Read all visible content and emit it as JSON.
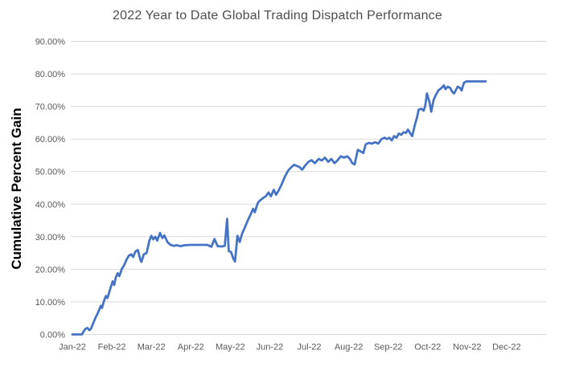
{
  "chart": {
    "title": "2022 Year to Date Global Trading Dispatch Performance",
    "y_axis_title": "Cumulative Percent Gain",
    "colors": {
      "line": "#4472C4",
      "gridline": "#D9D9D9",
      "tick_label": "#595959",
      "title": "#4d4d4d",
      "y_axis_title": "#000000",
      "background": "#ffffff"
    }
  },
  "chart_data": {
    "type": "line",
    "title": "2022 Year to Date Global Trading Dispatch Performance",
    "xlabel": "",
    "ylabel": "Cumulative Percent Gain",
    "ylim": [
      0,
      90
    ],
    "xlim_months": [
      0,
      12
    ],
    "grid": "horizontal",
    "legend": "none",
    "y_tick_step_percent": 10,
    "y_tick_labels": [
      "0.00%",
      "10.00%",
      "20.00%",
      "30.00%",
      "40.00%",
      "50.00%",
      "60.00%",
      "70.00%",
      "80.00%",
      "90.00%"
    ],
    "x_tick_labels": [
      "Jan-22",
      "Feb-22",
      "Mar-22",
      "Apr-22",
      "May-22",
      "Jun-22",
      "Jul-22",
      "Aug-22",
      "Sep-22",
      "Oct-22",
      "Nov-22",
      "Dec-22"
    ],
    "series": [
      {
        "name": "Cumulative Percent Gain",
        "color": "#4472C4",
        "stroke_width": 2.75,
        "points_note": "x = months since Jan-22 tick (0=Jan-22, 11=Dec-22); y = cumulative percent gain",
        "points": [
          [
            0.0,
            0.0
          ],
          [
            0.24,
            0.0
          ],
          [
            0.28,
            0.8
          ],
          [
            0.33,
            1.7
          ],
          [
            0.38,
            2.0
          ],
          [
            0.43,
            1.3
          ],
          [
            0.47,
            1.7
          ],
          [
            0.53,
            3.5
          ],
          [
            0.58,
            5.0
          ],
          [
            0.63,
            6.2
          ],
          [
            0.68,
            7.6
          ],
          [
            0.72,
            8.8
          ],
          [
            0.75,
            8.1
          ],
          [
            0.8,
            10.3
          ],
          [
            0.85,
            11.8
          ],
          [
            0.89,
            11.2
          ],
          [
            0.94,
            13.2
          ],
          [
            0.98,
            14.8
          ],
          [
            1.02,
            16.3
          ],
          [
            1.06,
            15.2
          ],
          [
            1.1,
            17.5
          ],
          [
            1.15,
            18.8
          ],
          [
            1.19,
            17.9
          ],
          [
            1.25,
            20.1
          ],
          [
            1.31,
            21.2
          ],
          [
            1.37,
            22.9
          ],
          [
            1.43,
            24.2
          ],
          [
            1.49,
            24.6
          ],
          [
            1.54,
            23.8
          ],
          [
            1.6,
            25.5
          ],
          [
            1.66,
            25.9
          ],
          [
            1.72,
            23.0
          ],
          [
            1.75,
            22.3
          ],
          [
            1.81,
            24.6
          ],
          [
            1.88,
            25.0
          ],
          [
            1.95,
            28.8
          ],
          [
            2.0,
            30.3
          ],
          [
            2.05,
            29.2
          ],
          [
            2.1,
            30.0
          ],
          [
            2.15,
            28.8
          ],
          [
            2.22,
            31.2
          ],
          [
            2.28,
            29.6
          ],
          [
            2.33,
            30.4
          ],
          [
            2.41,
            28.3
          ],
          [
            2.49,
            27.5
          ],
          [
            2.57,
            27.2
          ],
          [
            2.65,
            27.4
          ],
          [
            2.73,
            27.1
          ],
          [
            2.85,
            27.4
          ],
          [
            3.0,
            27.5
          ],
          [
            3.2,
            27.5
          ],
          [
            3.42,
            27.5
          ],
          [
            3.52,
            26.9
          ],
          [
            3.6,
            29.3
          ],
          [
            3.68,
            27.1
          ],
          [
            3.78,
            27.0
          ],
          [
            3.86,
            27.2
          ],
          [
            3.92,
            35.5
          ],
          [
            3.96,
            25.6
          ],
          [
            4.02,
            25.3
          ],
          [
            4.08,
            23.2
          ],
          [
            4.12,
            22.4
          ],
          [
            4.18,
            30.3
          ],
          [
            4.24,
            28.4
          ],
          [
            4.3,
            31.0
          ],
          [
            4.36,
            32.6
          ],
          [
            4.44,
            34.9
          ],
          [
            4.52,
            37.0
          ],
          [
            4.58,
            38.6
          ],
          [
            4.62,
            37.5
          ],
          [
            4.7,
            40.5
          ],
          [
            4.76,
            41.2
          ],
          [
            4.84,
            42.0
          ],
          [
            4.9,
            42.4
          ],
          [
            4.97,
            43.6
          ],
          [
            5.03,
            42.4
          ],
          [
            5.1,
            44.4
          ],
          [
            5.16,
            42.9
          ],
          [
            5.22,
            44.1
          ],
          [
            5.3,
            46.0
          ],
          [
            5.38,
            48.4
          ],
          [
            5.46,
            50.2
          ],
          [
            5.54,
            51.3
          ],
          [
            5.62,
            52.1
          ],
          [
            5.69,
            51.7
          ],
          [
            5.76,
            51.3
          ],
          [
            5.82,
            50.6
          ],
          [
            5.9,
            51.9
          ],
          [
            5.98,
            53.0
          ],
          [
            6.06,
            53.5
          ],
          [
            6.14,
            52.6
          ],
          [
            6.24,
            53.9
          ],
          [
            6.32,
            53.4
          ],
          [
            6.4,
            54.3
          ],
          [
            6.48,
            53.0
          ],
          [
            6.56,
            53.9
          ],
          [
            6.64,
            52.6
          ],
          [
            6.72,
            53.5
          ],
          [
            6.8,
            54.7
          ],
          [
            6.88,
            54.3
          ],
          [
            6.96,
            54.7
          ],
          [
            7.03,
            53.9
          ],
          [
            7.09,
            52.6
          ],
          [
            7.15,
            52.2
          ],
          [
            7.23,
            56.7
          ],
          [
            7.29,
            56.3
          ],
          [
            7.37,
            55.7
          ],
          [
            7.43,
            58.4
          ],
          [
            7.51,
            58.8
          ],
          [
            7.59,
            58.6
          ],
          [
            7.67,
            59.0
          ],
          [
            7.75,
            58.6
          ],
          [
            7.83,
            60.0
          ],
          [
            7.91,
            60.4
          ],
          [
            7.97,
            60.0
          ],
          [
            8.03,
            60.4
          ],
          [
            8.09,
            59.6
          ],
          [
            8.15,
            60.9
          ],
          [
            8.21,
            60.4
          ],
          [
            8.27,
            61.7
          ],
          [
            8.33,
            61.3
          ],
          [
            8.39,
            62.1
          ],
          [
            8.45,
            61.9
          ],
          [
            8.5,
            62.9
          ],
          [
            8.56,
            61.7
          ],
          [
            8.61,
            60.9
          ],
          [
            8.67,
            64.1
          ],
          [
            8.73,
            66.6
          ],
          [
            8.77,
            69.0
          ],
          [
            8.84,
            69.3
          ],
          [
            8.9,
            68.7
          ],
          [
            8.94,
            70.3
          ],
          [
            8.98,
            74.0
          ],
          [
            9.05,
            71.2
          ],
          [
            9.09,
            68.4
          ],
          [
            9.15,
            72.0
          ],
          [
            9.21,
            73.6
          ],
          [
            9.27,
            74.9
          ],
          [
            9.35,
            75.7
          ],
          [
            9.41,
            76.5
          ],
          [
            9.45,
            75.3
          ],
          [
            9.51,
            76.1
          ],
          [
            9.57,
            75.7
          ],
          [
            9.63,
            74.4
          ],
          [
            9.67,
            74.0
          ],
          [
            9.76,
            76.1
          ],
          [
            9.82,
            75.7
          ],
          [
            9.86,
            74.9
          ],
          [
            9.92,
            77.3
          ],
          [
            9.98,
            77.7
          ],
          [
            10.2,
            77.7
          ],
          [
            10.47,
            77.7
          ]
        ]
      }
    ]
  }
}
